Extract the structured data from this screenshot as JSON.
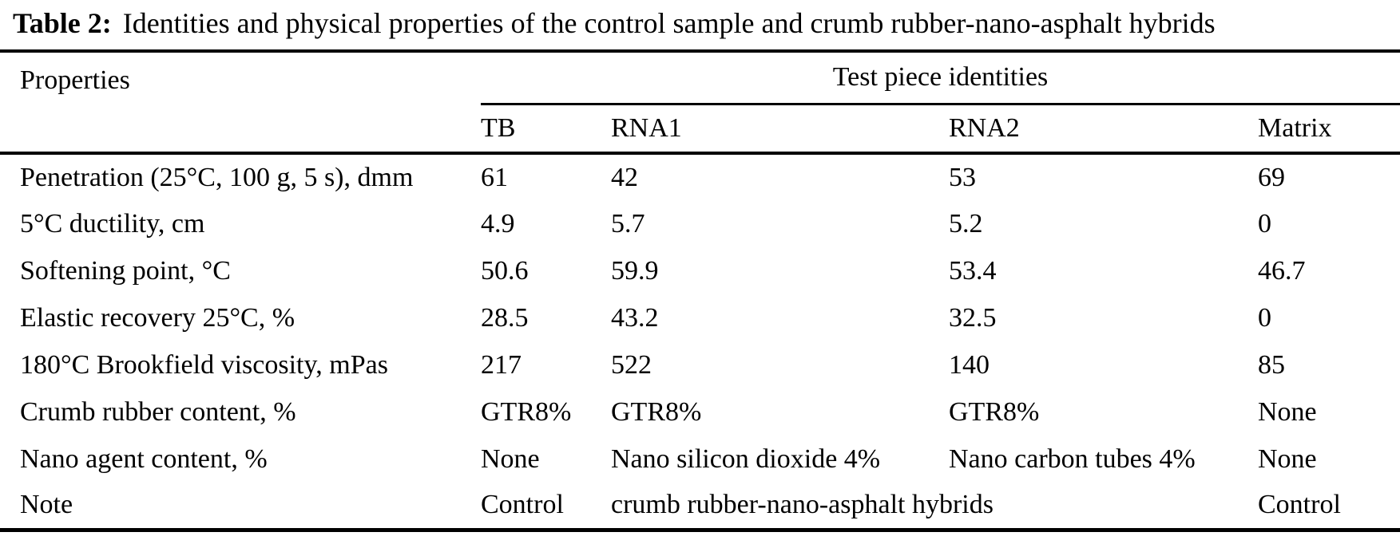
{
  "table": {
    "caption": {
      "label": "Table 2:",
      "text": "Identities and physical properties of the control sample and crumb rubber-nano-asphalt hybrids"
    },
    "header": {
      "properties": "Properties",
      "group": "Test piece identities",
      "columns": [
        "TB",
        "RNA1",
        "RNA2",
        "Matrix"
      ]
    },
    "rows": [
      {
        "property": "Penetration (25°C, 100 g, 5 s), dmm",
        "tb": "61",
        "rna1": "42",
        "rna2": "53",
        "matrix": "69"
      },
      {
        "property": "5°C ductility, cm",
        "tb": "4.9",
        "rna1": "5.7",
        "rna2": "5.2",
        "matrix": "0"
      },
      {
        "property": "Softening point, °C",
        "tb": "50.6",
        "rna1": "59.9",
        "rna2": "53.4",
        "matrix": "46.7"
      },
      {
        "property": "Elastic recovery 25°C, %",
        "tb": "28.5",
        "rna1": "43.2",
        "rna2": "32.5",
        "matrix": "0"
      },
      {
        "property": "180°C Brookfield viscosity, mPas",
        "tb": "217",
        "rna1": "522",
        "rna2": "140",
        "matrix": "85"
      },
      {
        "property": "Crumb rubber content, %",
        "tb": "GTR8%",
        "rna1": "GTR8%",
        "rna2": "GTR8%",
        "matrix": "None"
      },
      {
        "property": "Nano agent content, %",
        "tb": "None",
        "rna1": "Nano silicon dioxide 4%",
        "rna2": "Nano carbon tubes 4%",
        "matrix": "None"
      },
      {
        "property": "Note",
        "tb": "Control",
        "rna1_rna2": "crumb rubber-nano-asphalt hybrids",
        "matrix": "Control"
      }
    ]
  }
}
